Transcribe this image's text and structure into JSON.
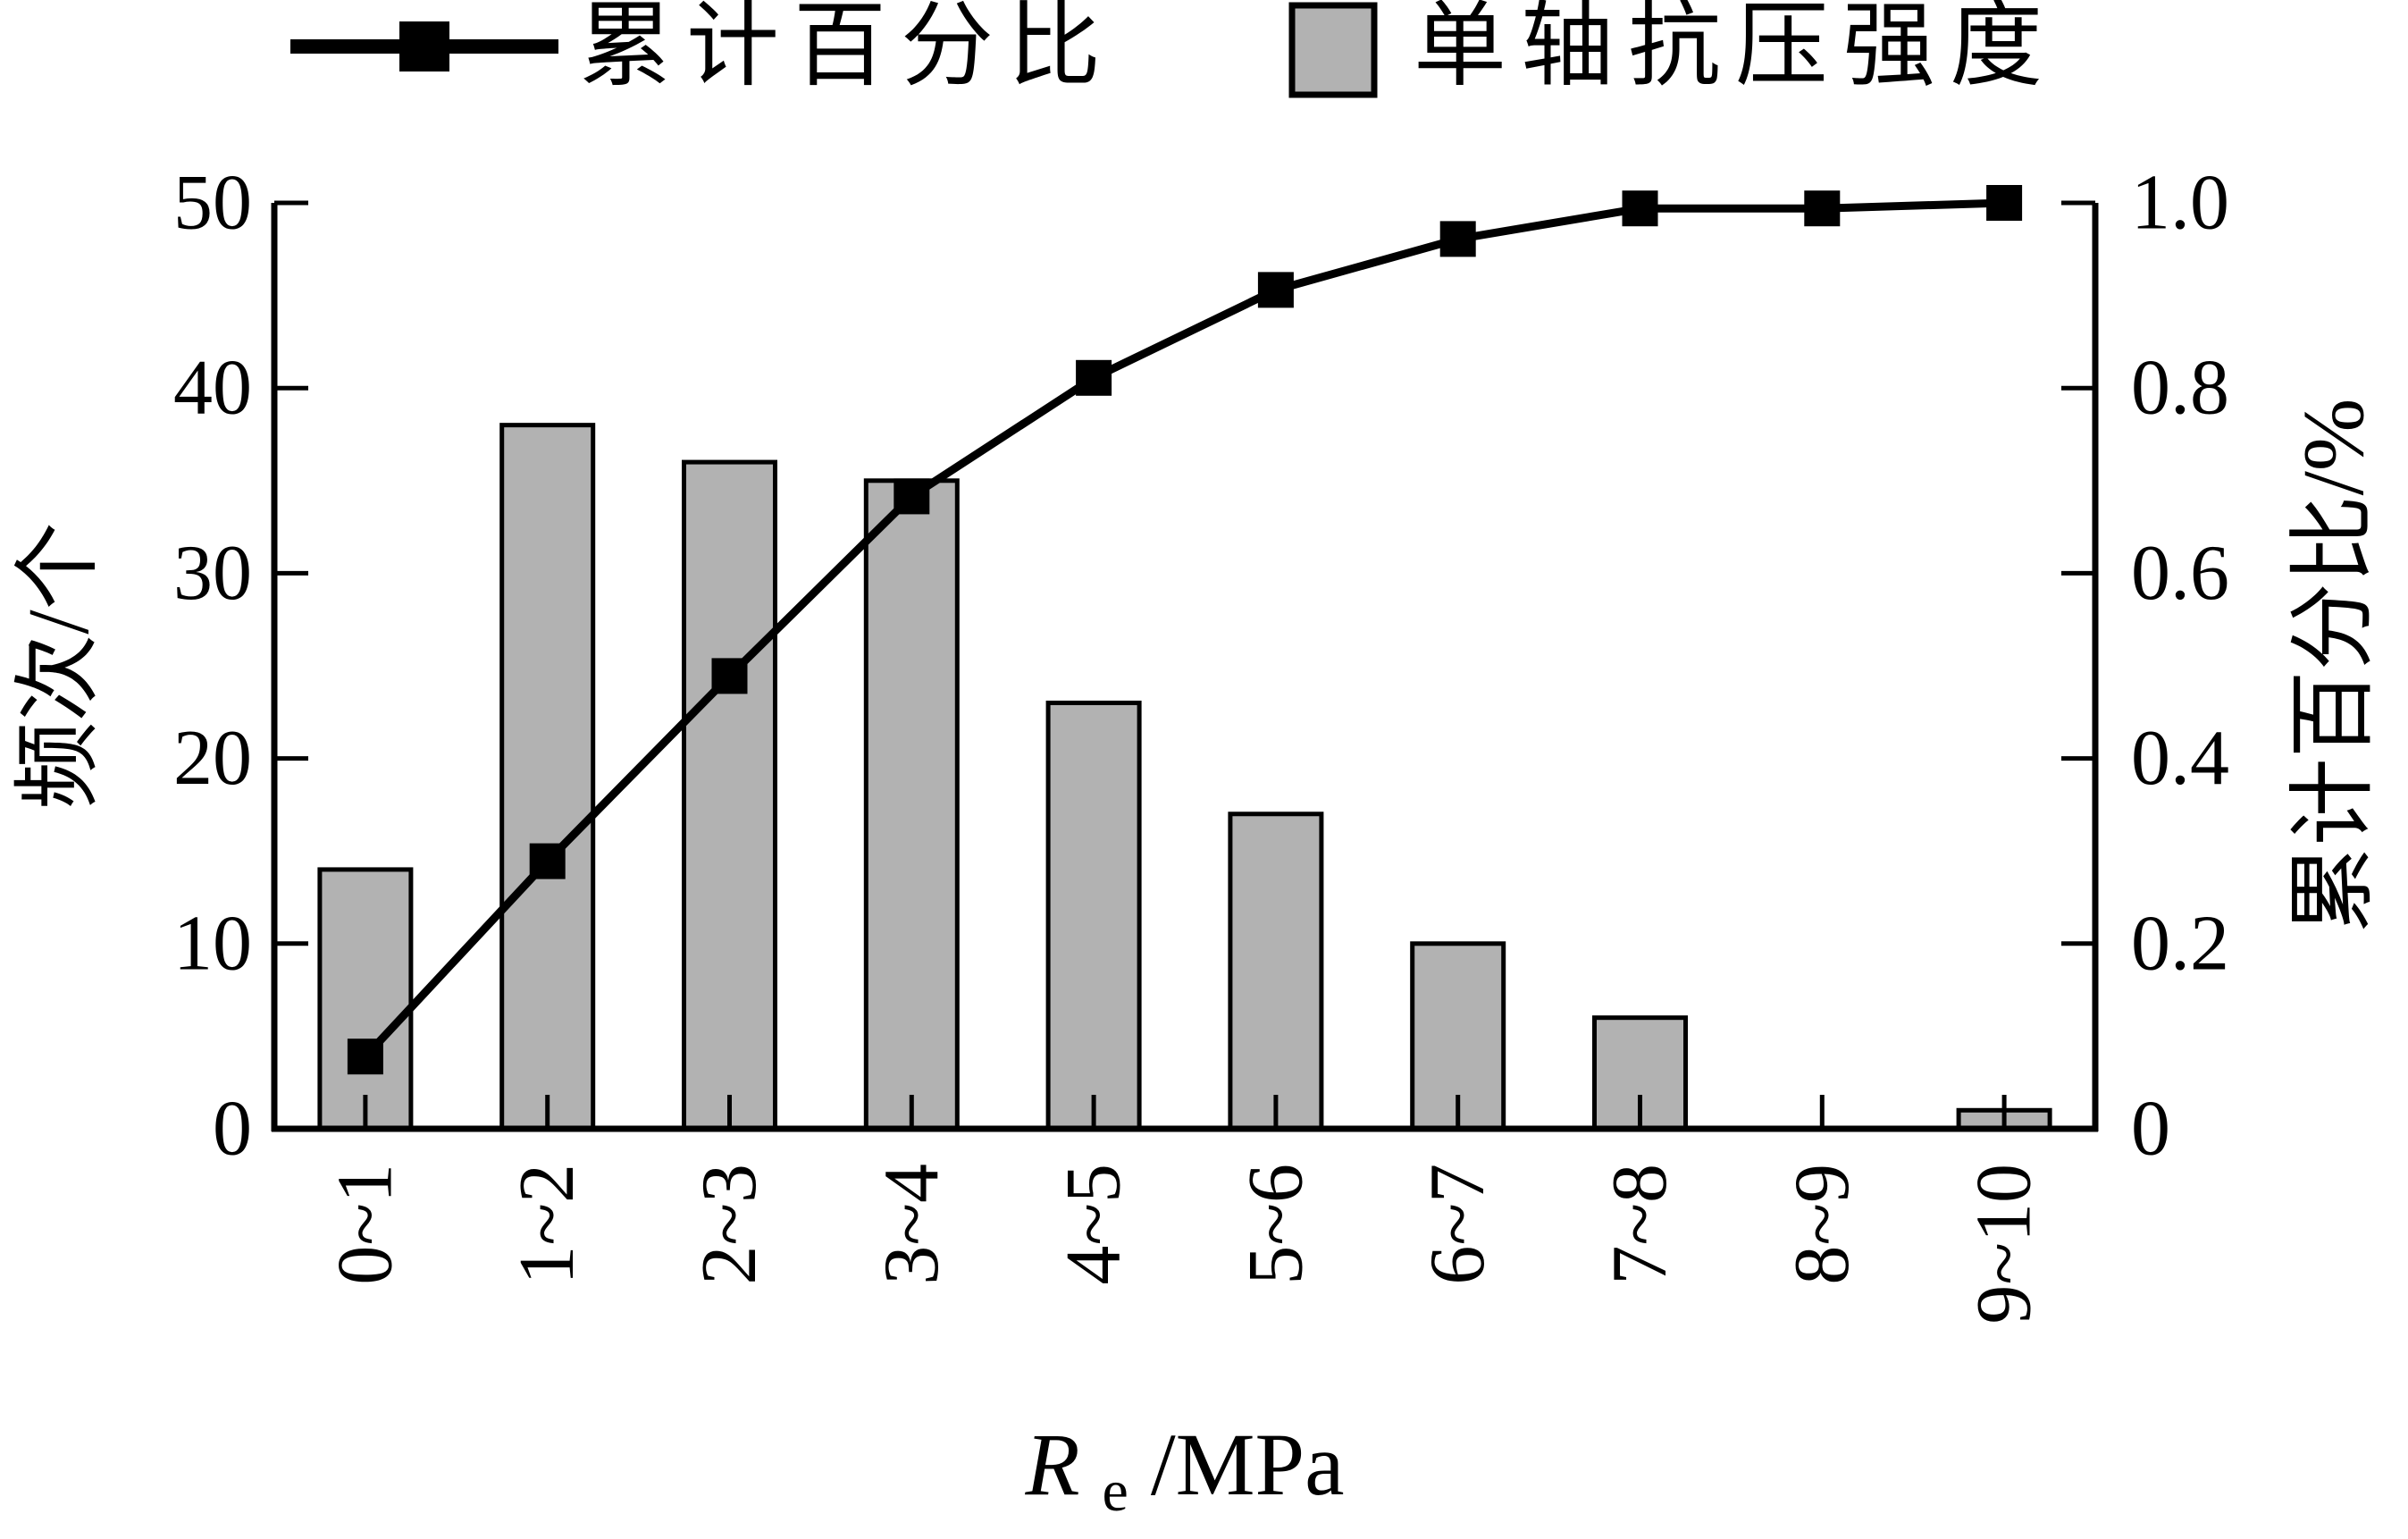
{
  "legend": {
    "items": [
      {
        "label": "累计百分比",
        "symbol": "line-with-square-marker"
      },
      {
        "label": "单轴抗压强度",
        "symbol": "filled-bar-swatch"
      }
    ]
  },
  "colors": {
    "bar_fill": "#b2b2b2",
    "bar_edge": "#000000",
    "line": "#000000",
    "marker": "#000000",
    "axis": "#000000",
    "background": "#ffffff"
  },
  "chart_data": {
    "type": "bar",
    "categories": [
      "0~1",
      "1~2",
      "2~3",
      "3~4",
      "4~5",
      "5~6",
      "6~7",
      "7~8",
      "8~9",
      "9~10"
    ],
    "series": [
      {
        "name": "单轴抗压强度",
        "type": "bar",
        "axis": "left",
        "values": [
          14,
          38,
          36,
          35,
          23,
          17,
          10,
          6,
          0,
          1
        ]
      },
      {
        "name": "累计百分比",
        "type": "line",
        "axis": "right",
        "marker": "square",
        "values": [
          0.078,
          0.289,
          0.489,
          0.683,
          0.811,
          0.906,
          0.961,
          0.994,
          0.994,
          1.0
        ]
      }
    ],
    "left_axis": {
      "label": "频次/个",
      "range": [
        0,
        50
      ],
      "ticks": [
        0,
        10,
        20,
        30,
        40,
        50
      ],
      "tick_labels": [
        "0",
        "10",
        "20",
        "30",
        "40",
        "50"
      ]
    },
    "right_axis": {
      "label": "累计百分比/%",
      "range": [
        0,
        1.0
      ],
      "ticks": [
        0,
        0.2,
        0.4,
        0.6,
        0.8,
        1.0
      ],
      "tick_labels": [
        "0",
        "0.2",
        "0.4",
        "0.6",
        "0.8",
        "1.0"
      ]
    },
    "xlabel": {
      "italic": "R",
      "sub": "e",
      "rest": "/MPa"
    },
    "legend_position": "top-center",
    "grid": false,
    "tick_direction": "in"
  }
}
